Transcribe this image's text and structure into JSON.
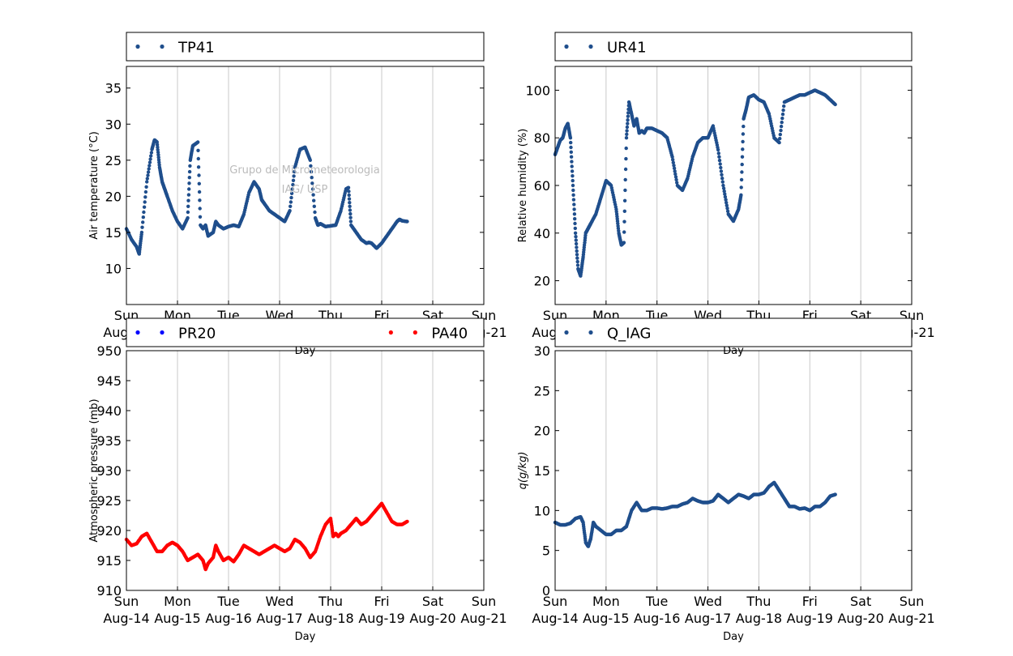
{
  "x_ticks": [
    {
      "day": "Sun",
      "date": "Aug-14"
    },
    {
      "day": "Mon",
      "date": "Aug-15"
    },
    {
      "day": "Tue",
      "date": "Aug-16"
    },
    {
      "day": "Wed",
      "date": "Aug-17"
    },
    {
      "day": "Thu",
      "date": "Aug-18"
    },
    {
      "day": "Fri",
      "date": "Aug-19"
    },
    {
      "day": "Sat",
      "date": "Aug-20"
    },
    {
      "day": "Sun",
      "date": "Aug-21"
    }
  ],
  "watermark": [
    "Grupo de Micrometeorologia",
    "IAG/ USP"
  ],
  "colors": {
    "blue": "#1f4e8c",
    "red": "#ff0000",
    "pr20": "#0000ff",
    "grid": "#c8c8c8"
  },
  "chart_data": [
    {
      "type": "scatter",
      "xlabel": "Day",
      "ylabel": "Air temperature (°C)",
      "xlim": [
        "2016-08-14",
        "2016-08-21"
      ],
      "ylim": [
        5,
        38
      ],
      "yticks": [
        10,
        15,
        20,
        25,
        30,
        35
      ],
      "grid": "vertical",
      "legend": "top, above plot",
      "series": [
        {
          "name": "TP41",
          "color": "#1f4e8c",
          "x_days_from_aug14": [
            0,
            0.1,
            0.2,
            0.25,
            0.3,
            0.4,
            0.5,
            0.55,
            0.6,
            0.65,
            0.7,
            0.75,
            0.8,
            0.9,
            1.0,
            1.1,
            1.2,
            1.25,
            1.3,
            1.4,
            1.45,
            1.5,
            1.55,
            1.6,
            1.7,
            1.75,
            1.8,
            1.9,
            2.0,
            2.1,
            2.2,
            2.3,
            2.4,
            2.5,
            2.6,
            2.65,
            2.7,
            2.8,
            2.9,
            3.0,
            3.1,
            3.2,
            3.3,
            3.4,
            3.5,
            3.6,
            3.7,
            3.75,
            3.8,
            3.9,
            4.0,
            4.1,
            4.2,
            4.3,
            4.35,
            4.4,
            4.5,
            4.6,
            4.7,
            4.75,
            4.8,
            4.9,
            5.0,
            5.1,
            5.2,
            5.3,
            5.35,
            5.4,
            5.5
          ],
          "y": [
            15.5,
            14.0,
            13.0,
            12.0,
            15.0,
            22.0,
            26.5,
            27.8,
            27.5,
            24.0,
            22.0,
            21.0,
            20.0,
            18.0,
            16.5,
            15.5,
            17.0,
            25.0,
            27.0,
            27.5,
            16.0,
            15.5,
            16.0,
            14.5,
            15.0,
            16.5,
            16.0,
            15.5,
            15.8,
            16.0,
            15.8,
            17.5,
            20.5,
            22.0,
            21.0,
            19.5,
            19.0,
            18.0,
            17.5,
            17.0,
            16.5,
            18.0,
            24.0,
            26.5,
            26.8,
            25.0,
            17.0,
            16.0,
            16.2,
            15.8,
            15.9,
            16.0,
            18.0,
            21.0,
            21.2,
            16.0,
            15.0,
            14.0,
            13.5,
            13.6,
            13.5,
            12.8,
            13.5,
            14.5,
            15.5,
            16.5,
            16.8,
            16.6,
            16.5
          ]
        }
      ]
    },
    {
      "type": "scatter",
      "xlabel": "Day",
      "ylabel": "Relative humidity (%)",
      "xlim": [
        "2016-08-14",
        "2016-08-21"
      ],
      "ylim": [
        10,
        110
      ],
      "yticks": [
        20,
        40,
        60,
        80,
        100
      ],
      "grid": "vertical",
      "legend": "top, above plot",
      "series": [
        {
          "name": "UR41",
          "color": "#1f4e8c",
          "x_days_from_aug14": [
            0,
            0.05,
            0.1,
            0.15,
            0.2,
            0.25,
            0.3,
            0.35,
            0.4,
            0.45,
            0.5,
            0.55,
            0.6,
            0.65,
            0.7,
            0.8,
            0.9,
            1.0,
            1.1,
            1.2,
            1.25,
            1.3,
            1.35,
            1.4,
            1.45,
            1.5,
            1.55,
            1.6,
            1.65,
            1.7,
            1.75,
            1.8,
            1.9,
            2.0,
            2.1,
            2.2,
            2.3,
            2.4,
            2.5,
            2.6,
            2.7,
            2.8,
            2.9,
            3.0,
            3.1,
            3.2,
            3.3,
            3.4,
            3.5,
            3.6,
            3.65,
            3.7,
            3.75,
            3.8,
            3.9,
            4.0,
            4.1,
            4.2,
            4.3,
            4.4,
            4.5,
            4.6,
            4.7,
            4.8,
            4.9,
            5.0,
            5.1,
            5.2,
            5.3,
            5.4,
            5.5
          ],
          "y": [
            73,
            76,
            79,
            80,
            84,
            86,
            80,
            60,
            40,
            25,
            22,
            30,
            40,
            42,
            44,
            48,
            55,
            62,
            60,
            50,
            40,
            35,
            36,
            80,
            95,
            90,
            85,
            88,
            82,
            83,
            82,
            84,
            84,
            83,
            82,
            80,
            72,
            60,
            58,
            63,
            72,
            78,
            80,
            80,
            85,
            75,
            60,
            48,
            45,
            50,
            56,
            88,
            92,
            97,
            98,
            96,
            95,
            90,
            80,
            78,
            95,
            96,
            97,
            98,
            98,
            99,
            100,
            99,
            98,
            96,
            94
          ]
        }
      ]
    },
    {
      "type": "scatter",
      "xlabel": "Day",
      "ylabel": "Atmospheric pressure (mb)",
      "xlim": [
        "2016-08-14",
        "2016-08-21"
      ],
      "ylim": [
        910,
        950
      ],
      "yticks": [
        910,
        915,
        920,
        925,
        930,
        935,
        940,
        945,
        950
      ],
      "grid": "vertical",
      "legend": "top, above plot",
      "series": [
        {
          "name": "PR20",
          "color": "#0000ff",
          "x_days_from_aug14": [],
          "y": []
        },
        {
          "name": "PA40",
          "color": "#ff0000",
          "x_days_from_aug14": [
            0,
            0.1,
            0.2,
            0.3,
            0.4,
            0.5,
            0.6,
            0.7,
            0.8,
            0.9,
            1.0,
            1.1,
            1.2,
            1.3,
            1.4,
            1.5,
            1.55,
            1.6,
            1.7,
            1.75,
            1.8,
            1.9,
            2.0,
            2.1,
            2.2,
            2.3,
            2.4,
            2.5,
            2.6,
            2.7,
            2.8,
            2.9,
            3.0,
            3.1,
            3.2,
            3.3,
            3.4,
            3.5,
            3.6,
            3.7,
            3.8,
            3.9,
            4.0,
            4.05,
            4.1,
            4.15,
            4.2,
            4.3,
            4.4,
            4.5,
            4.6,
            4.7,
            4.8,
            4.9,
            5.0,
            5.1,
            5.2,
            5.3,
            5.4,
            5.5
          ],
          "y": [
            918.5,
            917.5,
            917.8,
            919.0,
            919.5,
            918.0,
            916.5,
            916.5,
            917.5,
            918.0,
            917.5,
            916.5,
            915.0,
            915.5,
            916.0,
            915.0,
            913.5,
            914.5,
            915.5,
            917.5,
            916.5,
            915.0,
            915.5,
            914.8,
            916.0,
            917.5,
            917.0,
            916.5,
            916.0,
            916.5,
            917.0,
            917.5,
            917.0,
            916.5,
            917.0,
            918.5,
            918.0,
            917.0,
            915.5,
            916.5,
            919.0,
            921.0,
            922.0,
            919.0,
            919.5,
            919.0,
            919.5,
            920.0,
            921.0,
            922.0,
            921.0,
            921.5,
            922.5,
            923.5,
            924.5,
            923.0,
            921.5,
            921.0,
            921.0,
            921.5
          ]
        }
      ]
    },
    {
      "type": "scatter",
      "xlabel": "Day",
      "ylabel": "q(g/kg)",
      "xlim": [
        "2016-08-14",
        "2016-08-21"
      ],
      "ylim": [
        0,
        30
      ],
      "yticks": [
        0,
        5,
        10,
        15,
        20,
        25,
        30
      ],
      "grid": "vertical",
      "legend": "top, above plot",
      "series": [
        {
          "name": "Q_IAG",
          "color": "#1f4e8c",
          "x_days_from_aug14": [
            0,
            0.1,
            0.2,
            0.3,
            0.4,
            0.5,
            0.55,
            0.6,
            0.65,
            0.7,
            0.75,
            0.8,
            0.9,
            1.0,
            1.1,
            1.2,
            1.3,
            1.4,
            1.5,
            1.6,
            1.7,
            1.8,
            1.9,
            2.0,
            2.1,
            2.2,
            2.3,
            2.4,
            2.5,
            2.6,
            2.7,
            2.8,
            2.9,
            3.0,
            3.1,
            3.2,
            3.3,
            3.4,
            3.5,
            3.6,
            3.7,
            3.8,
            3.9,
            4.0,
            4.1,
            4.2,
            4.3,
            4.4,
            4.5,
            4.55,
            4.6,
            4.7,
            4.8,
            4.9,
            5.0,
            5.1,
            5.2,
            5.3,
            5.4,
            5.5
          ],
          "y": [
            8.5,
            8.2,
            8.2,
            8.4,
            9.0,
            9.2,
            8.5,
            6.0,
            5.5,
            6.5,
            8.5,
            8.0,
            7.5,
            7.0,
            7.0,
            7.5,
            7.5,
            8.0,
            10.0,
            11.0,
            10.0,
            10.0,
            10.3,
            10.3,
            10.2,
            10.3,
            10.5,
            10.5,
            10.8,
            11.0,
            11.5,
            11.2,
            11.0,
            11.0,
            11.2,
            12.0,
            11.5,
            11.0,
            11.5,
            12.0,
            11.8,
            11.5,
            12.0,
            12.0,
            12.2,
            13.0,
            13.5,
            12.5,
            11.5,
            11.0,
            10.5,
            10.5,
            10.2,
            10.3,
            10.0,
            10.5,
            10.5,
            11.0,
            11.8,
            12.0
          ]
        }
      ]
    }
  ]
}
